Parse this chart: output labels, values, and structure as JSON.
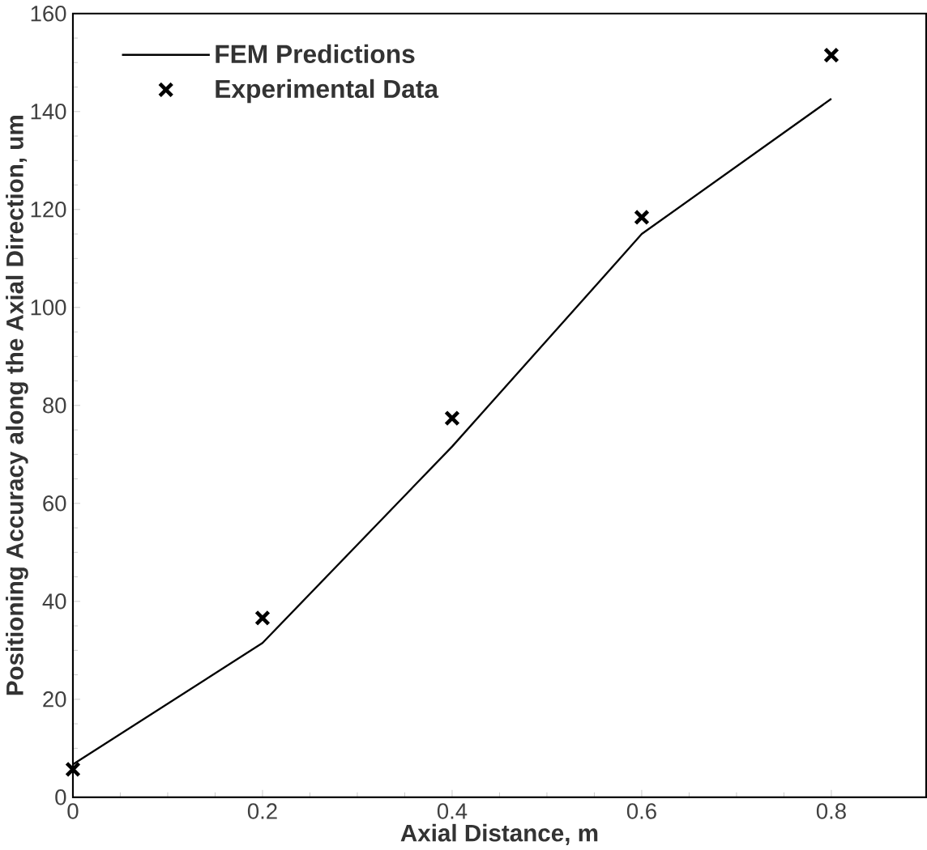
{
  "chart_data": {
    "type": "line",
    "xlabel": "Axial Distance, m",
    "ylabel": "Positioning Accuracy along the Axial Direction, um",
    "x": [
      0,
      0.2,
      0.4,
      0.6,
      0.8
    ],
    "series": [
      {
        "name": "FEM Predictions",
        "color": "#000000",
        "marker": "none",
        "line_style": "solid",
        "values": [
          6.7,
          31.5,
          71.6,
          115,
          142.6
        ]
      },
      {
        "name": "Experimental Data",
        "type": "scatter",
        "color": "#000000",
        "marker": "cross",
        "values": [
          5.7,
          36.6,
          77.4,
          118.4,
          151.5
        ]
      }
    ],
    "xlim": [
      0,
      0.9
    ],
    "ylim": [
      0,
      160
    ],
    "xticks": [
      0,
      0.2,
      0.4,
      0.6,
      0.8
    ],
    "yticks": [
      0,
      20,
      40,
      60,
      80,
      100,
      120,
      140,
      160
    ],
    "grid": false,
    "legend": "top left"
  }
}
